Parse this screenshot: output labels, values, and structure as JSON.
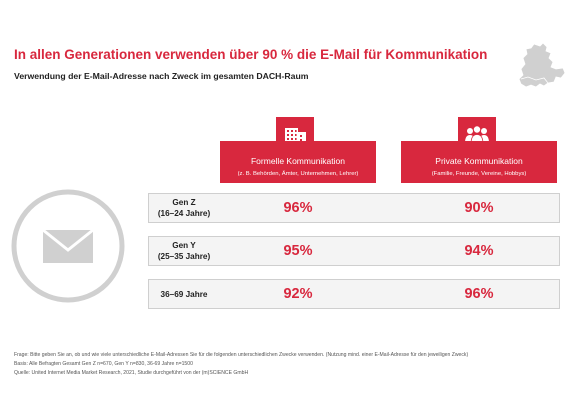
{
  "title": "In allen Generationen verwenden über 90 % die E-Mail für Kommunikation",
  "subtitle": "Verwendung der E-Mail-Adresse nach Zweck im gesamten DACH-Raum",
  "icons": {
    "map": "dach-map-icon",
    "mail": "envelope-icon",
    "formal": "office-building-icon",
    "private": "people-group-icon"
  },
  "colors": {
    "accent": "#d8283e",
    "row_bg": "#f4f4f4",
    "row_border": "#cfcfcf",
    "icon_gray": "#d0d0d0"
  },
  "columns": [
    {
      "title": "Formelle Kommunikation",
      "subtitle": "(z. B. Behörden, Ämter, Unternehmen, Lehrer)"
    },
    {
      "title": "Private Kommunikation",
      "subtitle": "(Familie, Freunde, Vereine, Hobbys)"
    }
  ],
  "rows": [
    {
      "line1": "Gen Z",
      "line2": "(16–24 Jahre)"
    },
    {
      "line1": "Gen Y",
      "line2": "(25–35 Jahre)"
    },
    {
      "line1": "36–69 Jahre",
      "line2": ""
    }
  ],
  "chart_data": {
    "type": "table",
    "title": "In allen Generationen verwenden über 90 % die E-Mail für Kommunikation",
    "subtitle": "Verwendung der E-Mail-Adresse nach Zweck im gesamten DACH-Raum",
    "columns": [
      "Formelle Kommunikation",
      "Private Kommunikation"
    ],
    "rows": [
      "Gen Z (16–24 Jahre)",
      "Gen Y (25–35 Jahre)",
      "36–69 Jahre"
    ],
    "values": [
      [
        96,
        90
      ],
      [
        95,
        94
      ],
      [
        92,
        96
      ]
    ],
    "display": [
      [
        "96%",
        "90%"
      ],
      [
        "95%",
        "94%"
      ],
      [
        "92%",
        "96%"
      ]
    ],
    "unit": "%"
  },
  "footnotes": [
    "Frage: Bitte geben Sie an, ob und wie viele unterschiedliche E-Mail-Adressen Sie für die folgenden unterschiedlichen Zwecke verwenden. (Nutzung mind. einer E-Mail-Adresse für den jeweiligen Zweck)",
    "Basis: Alle Befragten Gesamt Gen Z n=670, Gen Y n=830, 36-69 Jahre n=1500",
    "Quelle: United Internet Media Market Research, 2021, Studie durchgeführt von der (m)SCIENCE GmbH"
  ]
}
